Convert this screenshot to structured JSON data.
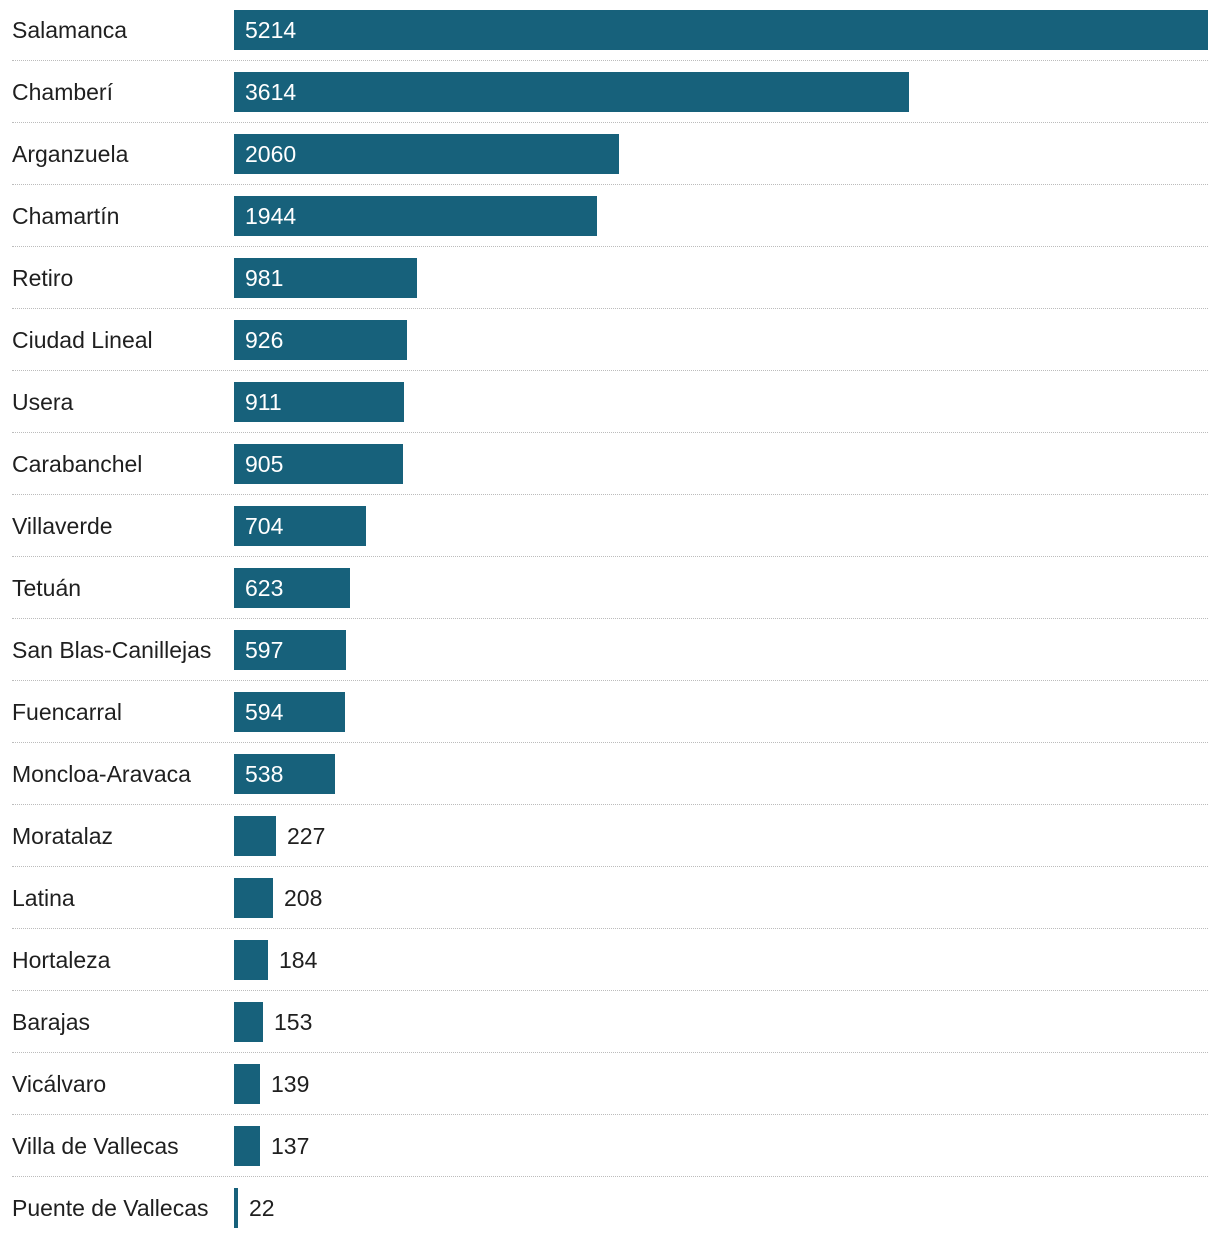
{
  "chart_data": {
    "type": "bar",
    "orientation": "horizontal",
    "categories": [
      "Salamanca",
      "Chamberí",
      "Arganzuela",
      "Chamartín",
      "Retiro",
      "Ciudad Lineal",
      "Usera",
      "Carabanchel",
      "Villaverde",
      "Tetuán",
      "San Blas-Canillejas",
      "Fuencarral",
      "Moncloa-Aravaca",
      "Moratalaz",
      "Latina",
      "Hortaleza",
      "Barajas",
      "Vicálvaro",
      "Villa de Vallecas",
      "Puente de Vallecas"
    ],
    "values": [
      5214,
      3614,
      2060,
      1944,
      981,
      926,
      911,
      905,
      704,
      623,
      597,
      594,
      538,
      227,
      208,
      184,
      153,
      139,
      137,
      22
    ],
    "value_labels": [
      "5214",
      "3614",
      "2060",
      "1944",
      "981",
      "926",
      "911",
      "905",
      "704",
      "623",
      "597",
      "594",
      "538",
      "227",
      "208",
      "184",
      "153",
      "139",
      "137",
      "22"
    ],
    "xlim": [
      0,
      5214
    ],
    "title": "",
    "xlabel": "",
    "ylabel": "",
    "grid": false,
    "legend": "none",
    "colors": {
      "bar": "#17617b",
      "divider": "#bcbcbc",
      "text": "#1f1f1f",
      "label_inside": "#ffffff"
    }
  }
}
